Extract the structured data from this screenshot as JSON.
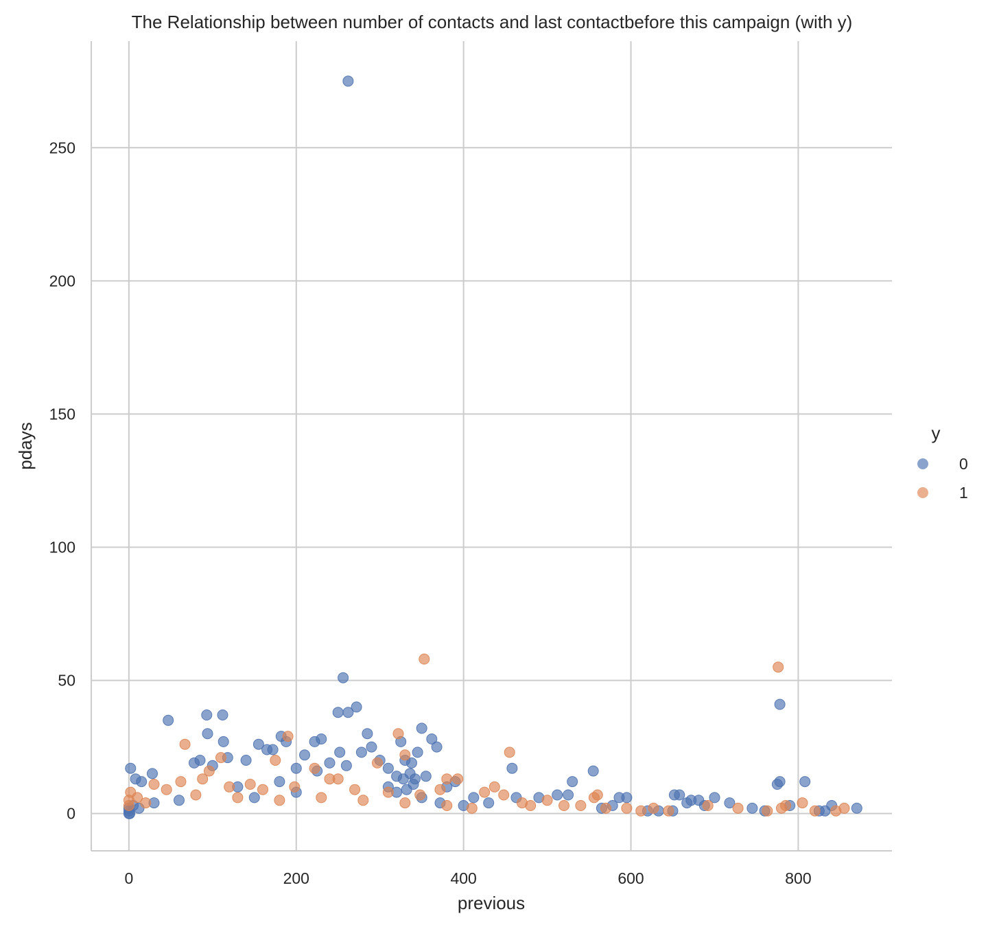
{
  "chart_data": {
    "type": "scatter",
    "title": "The Relationship between number of contacts  and last contactbefore this campaign (with y)",
    "xlabel": "previous",
    "ylabel": "pdays",
    "xlim": [
      -45,
      912
    ],
    "ylim": [
      -14,
      290
    ],
    "xticks": [
      0,
      200,
      400,
      600,
      800
    ],
    "yticks": [
      0,
      50,
      100,
      150,
      200,
      250
    ],
    "grid": true,
    "legend": {
      "title": "y",
      "placement": "center-right"
    },
    "series": [
      {
        "name": "0",
        "color": "#4c72b0",
        "points": [
          [
            262,
            275
          ],
          [
            256,
            51
          ],
          [
            272,
            40
          ],
          [
            262,
            38
          ],
          [
            250,
            38
          ],
          [
            47,
            35
          ],
          [
            93,
            37
          ],
          [
            112,
            37
          ],
          [
            94,
            30
          ],
          [
            285,
            30
          ],
          [
            350,
            32
          ],
          [
            325,
            27
          ],
          [
            362,
            28
          ],
          [
            230,
            28
          ],
          [
            222,
            27
          ],
          [
            113,
            27
          ],
          [
            78,
            19
          ],
          [
            85,
            20
          ],
          [
            100,
            18
          ],
          [
            118,
            21
          ],
          [
            140,
            20
          ],
          [
            155,
            26
          ],
          [
            165,
            24
          ],
          [
            172,
            24
          ],
          [
            182,
            29
          ],
          [
            188,
            27
          ],
          [
            200,
            17
          ],
          [
            210,
            22
          ],
          [
            225,
            16
          ],
          [
            240,
            19
          ],
          [
            252,
            23
          ],
          [
            260,
            18
          ],
          [
            278,
            23
          ],
          [
            290,
            25
          ],
          [
            300,
            20
          ],
          [
            310,
            17
          ],
          [
            320,
            14
          ],
          [
            330,
            20
          ],
          [
            338,
            19
          ],
          [
            345,
            23
          ],
          [
            355,
            14
          ],
          [
            368,
            25
          ],
          [
            380,
            10
          ],
          [
            390,
            12
          ],
          [
            28,
            15
          ],
          [
            2,
            17
          ],
          [
            8,
            13
          ],
          [
            15,
            12
          ],
          [
            412,
            6
          ],
          [
            430,
            4
          ],
          [
            458,
            17
          ],
          [
            463,
            6
          ],
          [
            490,
            6
          ],
          [
            512,
            7
          ],
          [
            525,
            7
          ],
          [
            530,
            12
          ],
          [
            555,
            16
          ],
          [
            565,
            2
          ],
          [
            578,
            3
          ],
          [
            586,
            6
          ],
          [
            595,
            6
          ],
          [
            620,
            1
          ],
          [
            633,
            1
          ],
          [
            650,
            1
          ],
          [
            652,
            7
          ],
          [
            658,
            7
          ],
          [
            667,
            4
          ],
          [
            672,
            5
          ],
          [
            681,
            5
          ],
          [
            688,
            3
          ],
          [
            700,
            6
          ],
          [
            718,
            4
          ],
          [
            745,
            2
          ],
          [
            760,
            1
          ],
          [
            775,
            11
          ],
          [
            778,
            12
          ],
          [
            778,
            41
          ],
          [
            790,
            3
          ],
          [
            808,
            12
          ],
          [
            825,
            1
          ],
          [
            832,
            1
          ],
          [
            840,
            3
          ],
          [
            870,
            2
          ],
          [
            350,
            6
          ],
          [
            372,
            4
          ],
          [
            400,
            3
          ],
          [
            320,
            8
          ],
          [
            200,
            8
          ],
          [
            150,
            6
          ],
          [
            60,
            5
          ],
          [
            30,
            4
          ],
          [
            5,
            3
          ],
          [
            0,
            0
          ],
          [
            0,
            1
          ],
          [
            0,
            2
          ],
          [
            1,
            0
          ],
          [
            12,
            2
          ],
          [
            340,
            11
          ],
          [
            332,
            9
          ],
          [
            328,
            13
          ],
          [
            336,
            15
          ],
          [
            342,
            13
          ],
          [
            310,
            10
          ],
          [
            180,
            12
          ],
          [
            130,
            10
          ]
        ]
      },
      {
        "name": "1",
        "color": "#dd8452",
        "points": [
          [
            353,
            58
          ],
          [
            776,
            55
          ],
          [
            67,
            26
          ],
          [
            190,
            29
          ],
          [
            322,
            30
          ],
          [
            455,
            23
          ],
          [
            330,
            22
          ],
          [
            110,
            21
          ],
          [
            175,
            20
          ],
          [
            250,
            13
          ],
          [
            297,
            19
          ],
          [
            380,
            13
          ],
          [
            393,
            13
          ],
          [
            30,
            11
          ],
          [
            45,
            9
          ],
          [
            62,
            12
          ],
          [
            88,
            13
          ],
          [
            96,
            16
          ],
          [
            120,
            10
          ],
          [
            145,
            11
          ],
          [
            160,
            9
          ],
          [
            198,
            10
          ],
          [
            222,
            17
          ],
          [
            240,
            13
          ],
          [
            270,
            9
          ],
          [
            310,
            8
          ],
          [
            348,
            7
          ],
          [
            372,
            9
          ],
          [
            425,
            8
          ],
          [
            437,
            10
          ],
          [
            448,
            7
          ],
          [
            470,
            4
          ],
          [
            480,
            3
          ],
          [
            500,
            5
          ],
          [
            520,
            3
          ],
          [
            540,
            3
          ],
          [
            556,
            6
          ],
          [
            560,
            7
          ],
          [
            570,
            2
          ],
          [
            595,
            2
          ],
          [
            612,
            1
          ],
          [
            627,
            2
          ],
          [
            645,
            1
          ],
          [
            692,
            3
          ],
          [
            728,
            2
          ],
          [
            763,
            1
          ],
          [
            785,
            3
          ],
          [
            805,
            4
          ],
          [
            820,
            1
          ],
          [
            845,
            1
          ],
          [
            855,
            2
          ],
          [
            780,
            2
          ],
          [
            0,
            3
          ],
          [
            0,
            5
          ],
          [
            2,
            8
          ],
          [
            10,
            6
          ],
          [
            20,
            4
          ],
          [
            80,
            7
          ],
          [
            130,
            6
          ],
          [
            180,
            5
          ],
          [
            230,
            6
          ],
          [
            280,
            5
          ],
          [
            330,
            4
          ],
          [
            380,
            3
          ],
          [
            410,
            2
          ]
        ]
      }
    ]
  }
}
